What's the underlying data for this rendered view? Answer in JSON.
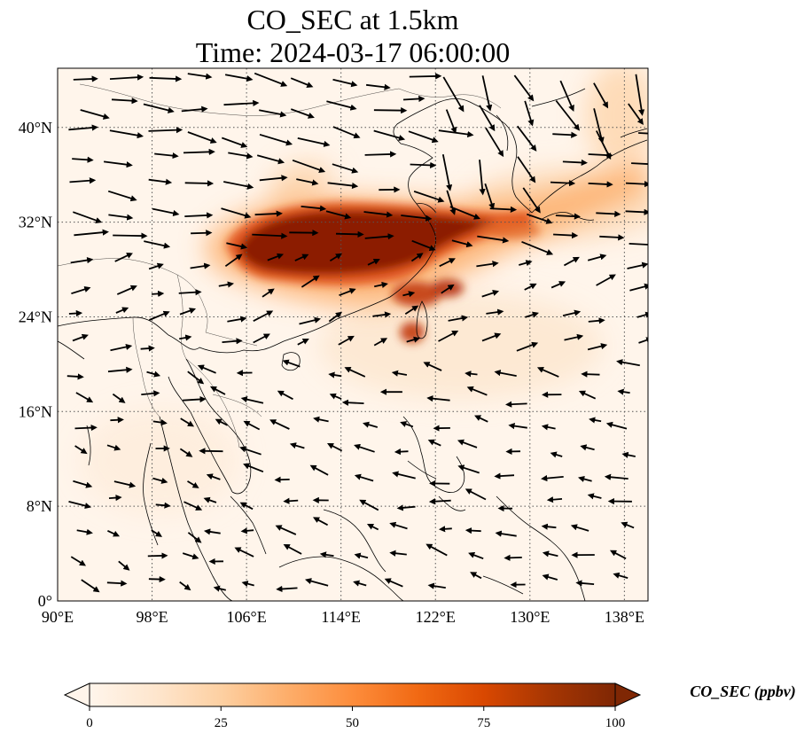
{
  "title": {
    "line1": "CO_SEC at 1.5km",
    "line2": "Time: 2024-03-17 06:00:00"
  },
  "map": {
    "lon_range": [
      90,
      140
    ],
    "lat_range": [
      0,
      45
    ],
    "lon_ticks": [
      {
        "value": 90,
        "label": "90°E"
      },
      {
        "value": 98,
        "label": "98°E"
      },
      {
        "value": 106,
        "label": "106°E"
      },
      {
        "value": 114,
        "label": "114°E"
      },
      {
        "value": 122,
        "label": "122°E"
      },
      {
        "value": 130,
        "label": "130°E"
      },
      {
        "value": 138,
        "label": "138°E"
      }
    ],
    "lat_ticks": [
      {
        "value": 0,
        "label": "0°"
      },
      {
        "value": 8,
        "label": "8°N"
      },
      {
        "value": 16,
        "label": "16°N"
      },
      {
        "value": 24,
        "label": "24°N"
      },
      {
        "value": 32,
        "label": "32°N"
      },
      {
        "value": 40,
        "label": "40°N"
      }
    ],
    "gridlines": true
  },
  "colorbar": {
    "label": "CO_SEC (ppbv)",
    "min": 0,
    "max": 100,
    "extend": "both",
    "ticks": [
      {
        "value": 0,
        "label": "0"
      },
      {
        "value": 25,
        "label": "25"
      },
      {
        "value": 50,
        "label": "50"
      },
      {
        "value": 75,
        "label": "75"
      },
      {
        "value": 100,
        "label": "100"
      }
    ],
    "colormap": [
      "#fff5eb",
      "#fee6ce",
      "#fdd0a2",
      "#fdae6b",
      "#fd8d3c",
      "#f16913",
      "#d94801",
      "#a63603",
      "#7f2704"
    ]
  },
  "plumes": [
    {
      "lon": 111,
      "lat": 31,
      "value": 100
    },
    {
      "lon": 117,
      "lat": 31,
      "value": 100
    },
    {
      "lon": 107,
      "lat": 30,
      "value": 100
    },
    {
      "lon": 121,
      "lat": 30.5,
      "value": 90
    },
    {
      "lon": 125,
      "lat": 31.5,
      "value": 70
    },
    {
      "lon": 118,
      "lat": 26.5,
      "value": 80
    },
    {
      "lon": 120.5,
      "lat": 22.5,
      "value": 75
    },
    {
      "lon": 124,
      "lat": 27,
      "value": 55
    },
    {
      "lon": 131,
      "lat": 34,
      "value": 25
    },
    {
      "lon": 136,
      "lat": 37,
      "value": 20
    },
    {
      "lon": 112,
      "lat": 35,
      "value": 18
    },
    {
      "lon": 128,
      "lat": 26,
      "value": 15
    }
  ]
}
